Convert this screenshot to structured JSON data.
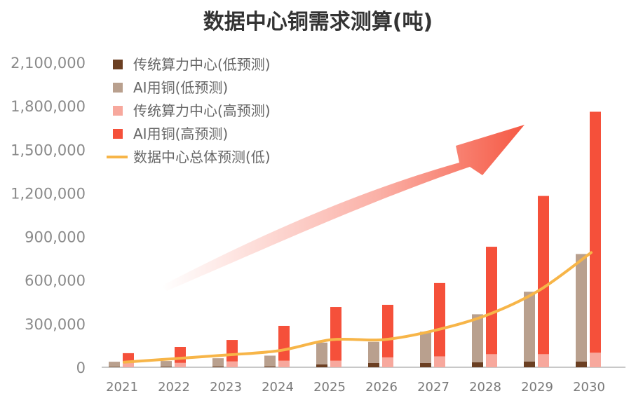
{
  "chart_data": {
    "type": "bar",
    "title": "数据中心铜需求测算(吨)",
    "xlabel": "",
    "ylabel": "",
    "ylim": [
      0,
      2100000
    ],
    "yticks": [
      "0",
      "300,000",
      "600,000",
      "900,000",
      "1,200,000",
      "1,500,000",
      "1,800,000",
      "2,100,000"
    ],
    "categories": [
      "2021",
      "2022",
      "2023",
      "2024",
      "2025",
      "2026",
      "2027",
      "2028",
      "2029",
      "2030"
    ],
    "series": [
      {
        "name": "传统算力中心(低预测)",
        "stack": "low",
        "color": "#6b3f22",
        "values": [
          3000,
          4000,
          5000,
          6000,
          20000,
          30000,
          30000,
          35000,
          40000,
          40000
        ]
      },
      {
        "name": "AI用铜(低预测)",
        "stack": "low",
        "color": "#b9a08e",
        "values": [
          35000,
          39000,
          57000,
          74000,
          150000,
          145000,
          215000,
          330000,
          480000,
          740000
        ]
      },
      {
        "name": "传统算力中心(高预测)",
        "stack": "high",
        "color": "#f7a89d",
        "values": [
          30000,
          30000,
          40000,
          45000,
          45000,
          68000,
          75000,
          90000,
          90000,
          100000
        ]
      },
      {
        "name": "AI用铜(高预测)",
        "stack": "high",
        "color": "#f5503a",
        "values": [
          67000,
          110000,
          148000,
          240000,
          370000,
          362000,
          505000,
          740000,
          1090000,
          1660000
        ]
      },
      {
        "name": "数据中心总体预测(低)",
        "type": "line",
        "color": "#f7b548",
        "values": [
          35000,
          60000,
          85000,
          115000,
          190000,
          190000,
          255000,
          360000,
          530000,
          790000
        ]
      }
    ],
    "legend": "top-left"
  }
}
